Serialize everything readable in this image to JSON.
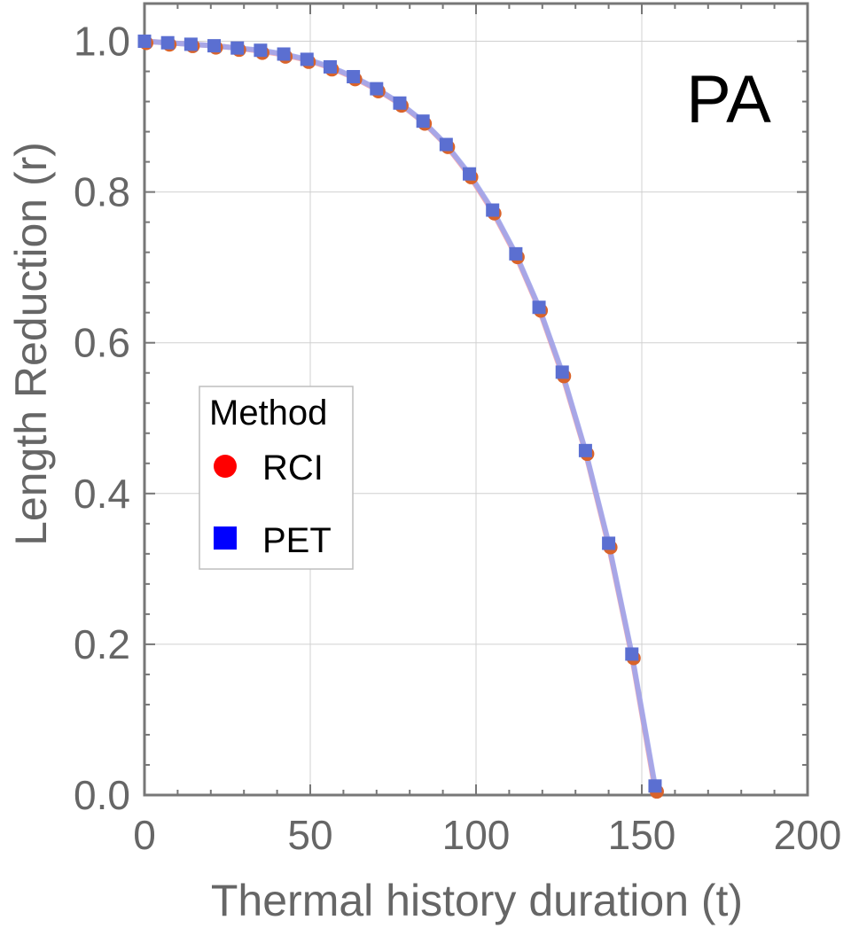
{
  "chart_data": {
    "type": "line",
    "title": "",
    "annotation": "PA",
    "xlabel": "Thermal history duration (t)",
    "ylabel": "Length Reduction (r)",
    "xlim": [
      0,
      200
    ],
    "ylim": [
      0,
      1.05
    ],
    "x_ticks": [
      0,
      50,
      100,
      150,
      200
    ],
    "x_tick_labels": [
      "0",
      "50",
      "100",
      "150",
      "200"
    ],
    "y_ticks": [
      0,
      0.2,
      0.4,
      0.6,
      0.8,
      1.0
    ],
    "y_tick_labels": [
      "0.0",
      "0.2",
      "0.4",
      "0.6",
      "0.8",
      "1.0"
    ],
    "grid": true,
    "legend": {
      "title": "Method",
      "placement": "left-middle",
      "entries": [
        "RCI",
        "PET"
      ]
    },
    "series": [
      {
        "name": "RCI",
        "marker": "circle",
        "marker_color": "#d9632a",
        "line_color": "#f4a0a8",
        "legend_color": "#ff0000",
        "x": [
          0,
          7,
          14,
          21,
          28,
          35,
          42,
          49,
          56,
          63,
          70,
          77,
          84,
          91,
          98,
          105,
          112,
          119,
          126,
          133,
          140,
          147,
          154
        ],
        "values": [
          1.0,
          0.998,
          0.996,
          0.994,
          0.991,
          0.987,
          0.982,
          0.975,
          0.965,
          0.952,
          0.936,
          0.917,
          0.893,
          0.862,
          0.822,
          0.774,
          0.716,
          0.645,
          0.558,
          0.455,
          0.331,
          0.184,
          0.007
        ]
      },
      {
        "name": "PET",
        "marker": "square",
        "marker_color": "#5b6fd1",
        "line_color": "#9aa5ee",
        "legend_color": "#0000ff",
        "x": [
          0,
          7,
          14,
          21,
          28,
          35,
          42,
          49,
          56,
          63,
          70,
          77,
          84,
          91,
          98,
          105,
          112,
          119,
          126,
          133,
          140,
          147,
          154
        ],
        "values": [
          1.0,
          0.998,
          0.996,
          0.994,
          0.991,
          0.988,
          0.983,
          0.976,
          0.966,
          0.953,
          0.937,
          0.918,
          0.894,
          0.863,
          0.824,
          0.776,
          0.718,
          0.647,
          0.561,
          0.457,
          0.334,
          0.187,
          0.012
        ]
      }
    ]
  }
}
